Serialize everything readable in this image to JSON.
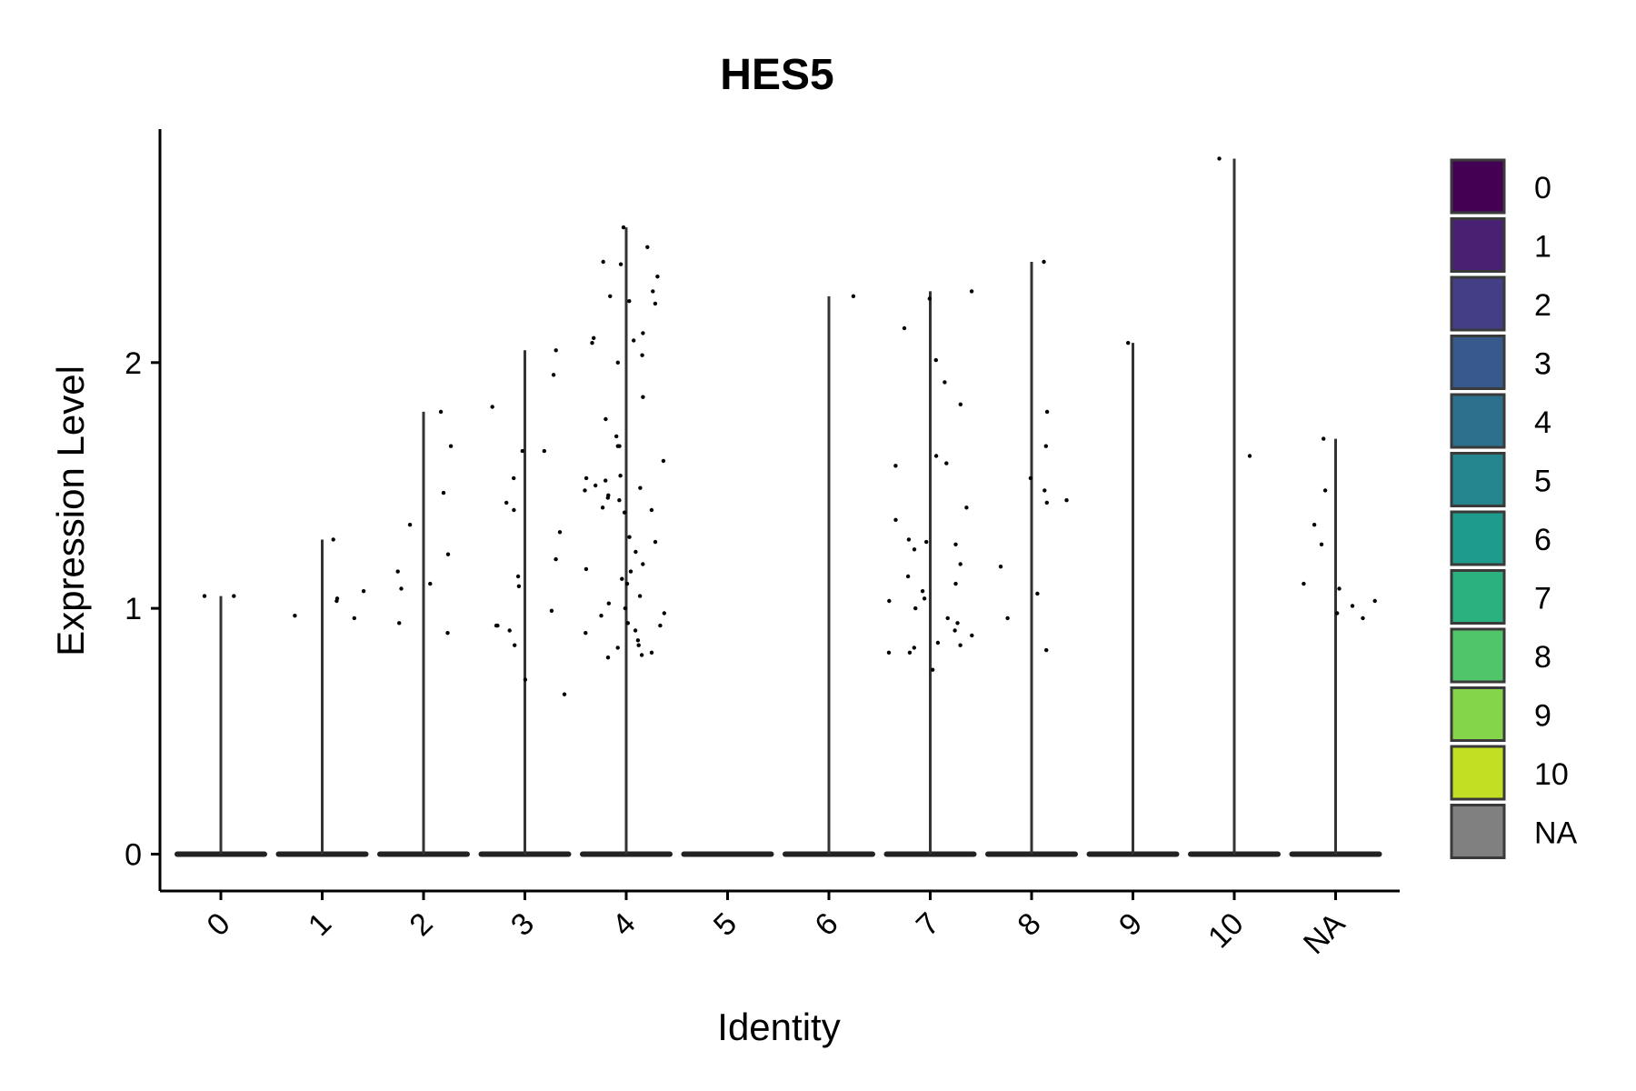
{
  "chart_data": {
    "type": "violin",
    "title": "HES5",
    "xlabel": "Identity",
    "ylabel": "Expression Level",
    "ylim": [
      -0.15,
      2.95
    ],
    "yticks": [
      0,
      1,
      2
    ],
    "categories": [
      "0",
      "1",
      "2",
      "3",
      "4",
      "5",
      "6",
      "7",
      "8",
      "9",
      "10",
      "NA"
    ],
    "max_values": [
      1.05,
      1.28,
      1.8,
      2.05,
      2.55,
      0,
      2.27,
      2.29,
      2.41,
      2.08,
      2.83,
      1.69
    ],
    "points": [
      [
        1.05,
        1.05
      ],
      [
        1.28,
        1.07,
        1.04,
        1.03,
        0.97,
        0.96
      ],
      [
        1.8,
        1.66,
        1.47,
        1.34,
        1.22,
        1.15,
        1.1,
        1.08,
        0.94,
        0.9
      ],
      [
        2.05,
        1.95,
        1.82,
        1.64,
        1.64,
        1.53,
        1.43,
        1.4,
        1.31,
        1.2,
        1.13,
        1.09,
        0.99,
        0.93,
        0.93,
        0.91,
        0.85,
        0.71,
        0.65
      ],
      [
        2.55,
        2.47,
        2.41,
        2.4,
        2.35,
        2.29,
        2.27,
        2.25,
        2.24,
        2.12,
        2.1,
        2.09,
        2.08,
        2.03,
        2.0,
        1.86,
        1.77,
        1.7,
        1.66,
        1.66,
        1.6,
        1.54,
        1.53,
        1.52,
        1.5,
        1.49,
        1.48,
        1.46,
        1.45,
        1.44,
        1.41,
        1.4,
        1.39,
        1.29,
        1.27,
        1.23,
        1.18,
        1.16,
        1.15,
        1.12,
        1.1,
        1.05,
        1.02,
        1.0,
        0.98,
        0.97,
        0.94,
        0.93,
        0.91,
        0.9,
        0.87,
        0.85,
        0.84,
        0.82,
        0.81,
        0.8
      ],
      [],
      [
        2.27
      ],
      [
        2.29,
        2.26,
        2.14,
        2.01,
        1.92,
        1.83,
        1.62,
        1.59,
        1.58,
        1.41,
        1.36,
        1.28,
        1.27,
        1.26,
        1.24,
        1.18,
        1.13,
        1.1,
        1.07,
        1.04,
        1.03,
        1.0,
        0.96,
        0.94,
        0.91,
        0.89,
        0.86,
        0.85,
        0.84,
        0.82,
        0.82,
        0.75
      ],
      [
        2.41,
        1.8,
        1.66,
        1.53,
        1.48,
        1.44,
        1.43,
        1.17,
        1.06,
        0.96,
        0.83
      ],
      [
        2.08
      ],
      [
        2.83,
        1.62
      ],
      [
        1.69,
        1.48,
        1.34,
        1.26,
        1.1,
        1.08,
        1.03,
        1.01,
        0.98,
        0.96
      ]
    ],
    "legend": {
      "position": "right",
      "entries": [
        "0",
        "1",
        "2",
        "3",
        "4",
        "5",
        "6",
        "7",
        "8",
        "9",
        "10",
        "NA"
      ],
      "colors": [
        "#440154",
        "#482173",
        "#433E85",
        "#38598C",
        "#2D708E",
        "#25858E",
        "#1E9B8A",
        "#2BB07F",
        "#51C56A",
        "#85D54A",
        "#C2DF23",
        "#808080"
      ]
    },
    "grid": false
  }
}
